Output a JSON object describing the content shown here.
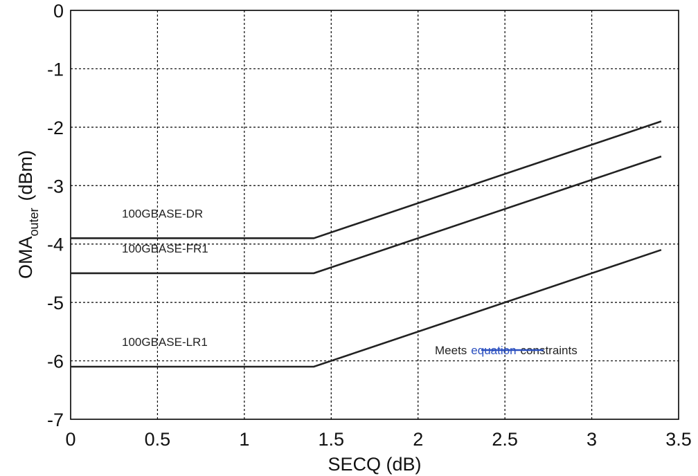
{
  "chart_data": {
    "type": "line",
    "xlabel": "SECQ (dB)",
    "ylabel_main": "OMA",
    "ylabel_sub": "outer",
    "ylabel_unit": "(dBm)",
    "xlim": [
      0,
      3.5
    ],
    "ylim": [
      -7,
      0
    ],
    "xticks": [
      0,
      0.5,
      1,
      1.5,
      2,
      2.5,
      3,
      3.5
    ],
    "xtick_labels": [
      "0",
      "0.5",
      "1",
      "1.5",
      "2",
      "2.5",
      "3",
      "3.5"
    ],
    "yticks": [
      0,
      -1,
      -2,
      -3,
      -4,
      -5,
      -6,
      -7
    ],
    "ytick_labels": [
      "0",
      "-1",
      "-2",
      "-3",
      "-4",
      "-5",
      "-6",
      "-7"
    ],
    "grid": true,
    "series": [
      {
        "name": "100GBASE-DR",
        "x": [
          0,
          1.4,
          3.4
        ],
        "y": [
          -3.9,
          -3.9,
          -1.9
        ]
      },
      {
        "name": "100GBASE-FR1",
        "x": [
          0,
          1.4,
          3.4
        ],
        "y": [
          -4.5,
          -4.5,
          -2.5
        ]
      },
      {
        "name": "100GBASE-LR1",
        "x": [
          0,
          1.4,
          3.4
        ],
        "y": [
          -6.1,
          -6.1,
          -4.1
        ]
      }
    ],
    "annotation": {
      "prefix": "Meets",
      "struck": "equation",
      "suffix": "constraints",
      "strike_color": "#2a4fbf"
    }
  }
}
